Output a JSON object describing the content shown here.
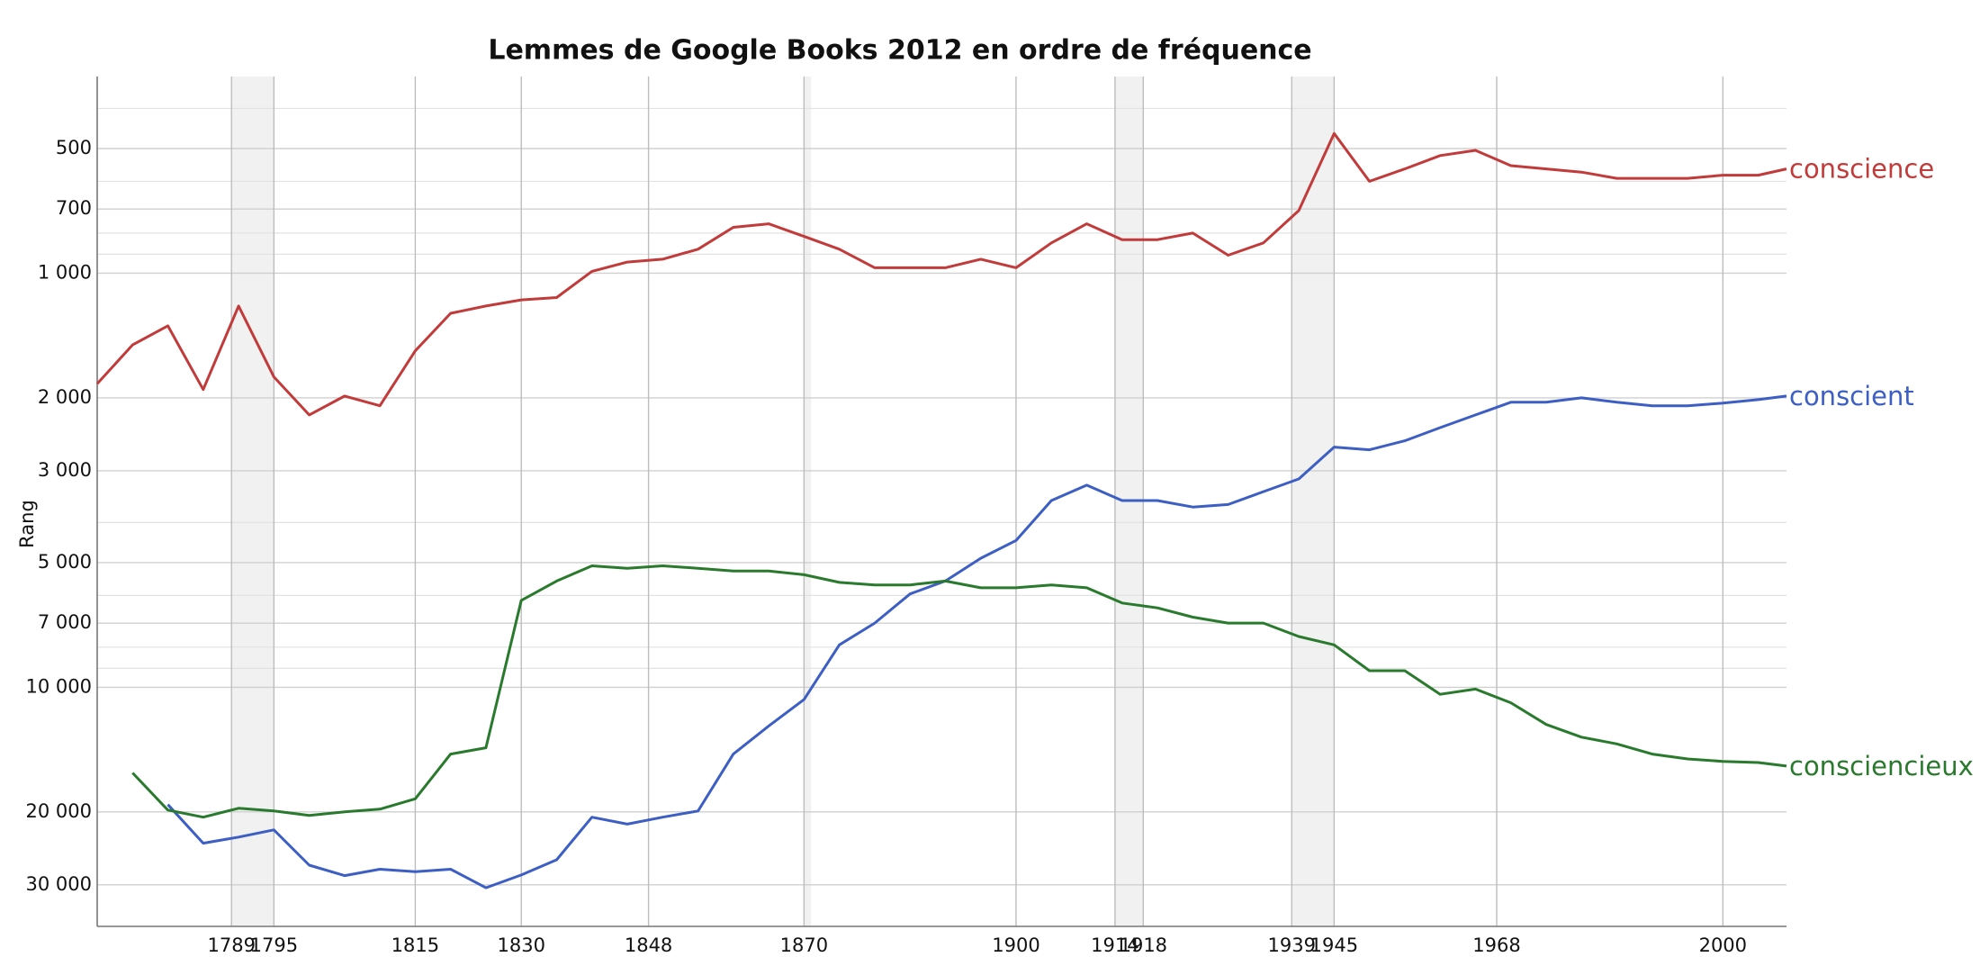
{
  "chart_data": {
    "type": "line",
    "title": "Lemmes de Google Books 2012 en ordre de fréquence",
    "y_label": "Rang",
    "log_y": true,
    "y_inverted": true,
    "xlim": [
      1770,
      2009
    ],
    "xticks": [
      1789,
      1795,
      1815,
      1830,
      1848,
      1870,
      1900,
      1914,
      1918,
      1939,
      1945,
      1968,
      2000
    ],
    "ylim": [
      335,
      37800
    ],
    "yticks": [
      500,
      700,
      {
        "value": 1000,
        "label": "1 000"
      },
      {
        "value": 2000,
        "label": "2 000"
      },
      {
        "value": 3000,
        "label": "3 000"
      },
      {
        "value": 5000,
        "label": "5 000"
      },
      {
        "value": 7000,
        "label": "7 000"
      },
      {
        "value": 10000,
        "label": "10 000"
      },
      {
        "value": 20000,
        "label": "20 000"
      },
      {
        "value": 30000,
        "label": "30 000"
      }
    ],
    "minor_yticks": [
      400,
      600,
      800,
      900,
      4000,
      6000,
      8000,
      9000
    ],
    "shaded_periods": [
      [
        1789,
        1795
      ],
      [
        1870,
        1871
      ],
      [
        1914,
        1918
      ],
      [
        1939,
        1945
      ]
    ],
    "x": [
      1770,
      1775,
      1780,
      1785,
      1790,
      1795,
      1800,
      1805,
      1810,
      1815,
      1820,
      1825,
      1830,
      1835,
      1840,
      1845,
      1850,
      1855,
      1860,
      1865,
      1870,
      1875,
      1880,
      1885,
      1890,
      1895,
      1900,
      1905,
      1910,
      1915,
      1920,
      1925,
      1930,
      1935,
      1940,
      1945,
      1950,
      1955,
      1960,
      1965,
      1970,
      1975,
      1980,
      1985,
      1990,
      1995,
      2000,
      2005,
      2009
    ],
    "series": [
      {
        "name": "conscience",
        "color": "#c23b3b",
        "values": [
          1850,
          1490,
          1340,
          1910,
          1200,
          1780,
          2200,
          1980,
          2090,
          1540,
          1250,
          1200,
          1160,
          1145,
          990,
          940,
          925,
          875,
          775,
          760,
          815,
          875,
          970,
          970,
          970,
          925,
          970,
          845,
          760,
          830,
          830,
          800,
          905,
          845,
          706,
          460,
          600,
          560,
          520,
          505,
          550,
          560,
          570,
          590,
          590,
          590,
          580,
          580,
          560
        ]
      },
      {
        "name": "conscient",
        "color": "#3d5fc4",
        "values": [
          null,
          null,
          19200,
          23800,
          23000,
          22100,
          26900,
          28500,
          27500,
          27900,
          27500,
          30500,
          28400,
          26100,
          20600,
          21400,
          20600,
          19900,
          14500,
          12400,
          10700,
          7900,
          7000,
          5950,
          5540,
          4880,
          4420,
          3540,
          3250,
          3540,
          3540,
          3670,
          3620,
          3370,
          3140,
          2630,
          2670,
          2540,
          2360,
          2200,
          2050,
          2050,
          2000,
          2050,
          2090,
          2090,
          2060,
          2020,
          1980
        ]
      },
      {
        "name": "consciencieux",
        "color": "#2a7a2e",
        "values": [
          null,
          16100,
          19800,
          20600,
          19600,
          19900,
          20400,
          20000,
          19700,
          18600,
          14500,
          14000,
          6170,
          5540,
          5090,
          5160,
          5090,
          5160,
          5240,
          5240,
          5350,
          5580,
          5660,
          5660,
          5540,
          5750,
          5750,
          5660,
          5750,
          6260,
          6430,
          6770,
          7000,
          7000,
          7540,
          7900,
          9120,
          9120,
          10400,
          10100,
          10900,
          12300,
          13200,
          13700,
          14500,
          14900,
          15100,
          15200,
          15500
        ]
      }
    ]
  }
}
